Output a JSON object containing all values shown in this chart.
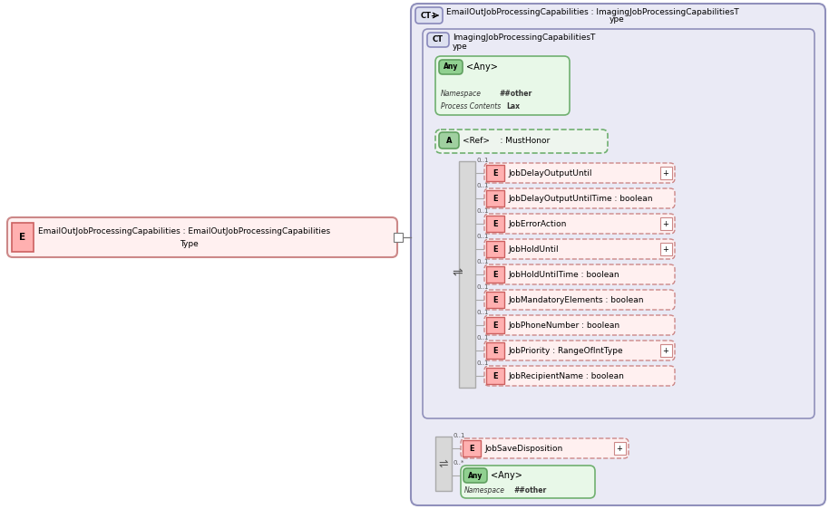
{
  "elements": [
    {
      "label": "JobDelayOutputUntil",
      "has_plus": true
    },
    {
      "label": "JobDelayOutputUntilTime : boolean",
      "has_plus": false
    },
    {
      "label": "JobErrorAction",
      "has_plus": true
    },
    {
      "label": "JobHoldUntil",
      "has_plus": true
    },
    {
      "label": "JobHoldUntilTime : boolean",
      "has_plus": false
    },
    {
      "label": "JobMandatoryElements : boolean",
      "has_plus": false
    },
    {
      "label": "JobPhoneNumber : boolean",
      "has_plus": false
    },
    {
      "label": "JobPriority : RangeOfIntType",
      "has_plus": true
    },
    {
      "label": "JobRecipientName : boolean",
      "has_plus": false
    }
  ]
}
